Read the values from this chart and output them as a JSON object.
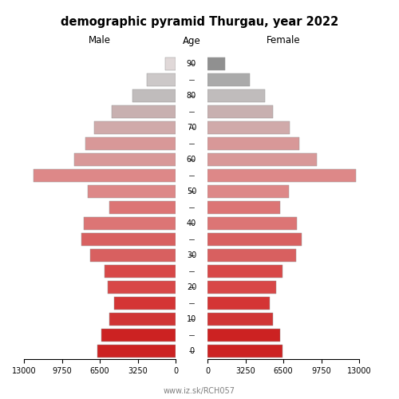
{
  "title": "demographic pyramid Thurgau, year 2022",
  "ages": [
    0,
    5,
    10,
    15,
    20,
    25,
    30,
    35,
    40,
    45,
    50,
    55,
    60,
    65,
    70,
    75,
    80,
    85,
    90
  ],
  "age_tick_labels": [
    "0",
    "",
    "10",
    "",
    "20",
    "",
    "30",
    "",
    "40",
    "",
    "50",
    "",
    "60",
    "",
    "70",
    "",
    "80",
    "",
    "90"
  ],
  "male": [
    6700,
    6350,
    5650,
    5250,
    5800,
    6100,
    7300,
    8100,
    7900,
    5650,
    7500,
    12200,
    8700,
    7750,
    7000,
    5500,
    3700,
    2450,
    900
  ],
  "female": [
    6400,
    6250,
    5600,
    5350,
    5900,
    6450,
    7600,
    8050,
    7650,
    6200,
    7000,
    12700,
    9400,
    7850,
    7050,
    5600,
    4900,
    3650,
    1500
  ],
  "male_colors": [
    "#cc2222",
    "#cc2222",
    "#d03535",
    "#d43535",
    "#d84848",
    "#d84848",
    "#d86060",
    "#d86060",
    "#dc7575",
    "#dc7575",
    "#dd8888",
    "#dd8888",
    "#d89898",
    "#d89898",
    "#d0aaaa",
    "#c8b0b0",
    "#c0bcbc",
    "#ccc8c8",
    "#e0d8d8"
  ],
  "female_colors": [
    "#cc2222",
    "#cc2222",
    "#d03535",
    "#d43535",
    "#d84848",
    "#d84848",
    "#d86060",
    "#d86060",
    "#dc7575",
    "#dc7575",
    "#dd8888",
    "#dd8888",
    "#d89898",
    "#d89898",
    "#d0aaaa",
    "#c8b0b0",
    "#c0bcbc",
    "#aaaaaa",
    "#909090"
  ],
  "xlim": 13000,
  "xticks_left": [
    13000,
    9750,
    6500,
    3250,
    0
  ],
  "xtick_labels_left": [
    "13000",
    "9750",
    "6500",
    "3250",
    "0"
  ],
  "xticks_right": [
    0,
    3250,
    6500,
    9750,
    13000
  ],
  "xtick_labels_right": [
    "0",
    "3250",
    "6500",
    "9750",
    "13000"
  ],
  "left_label": "Male",
  "right_label": "Female",
  "age_label": "Age",
  "footer": "www.iz.sk/RCH057",
  "bar_height": 0.8
}
